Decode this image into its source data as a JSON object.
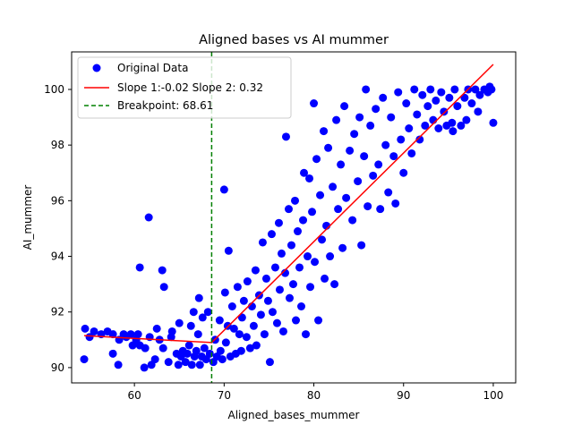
{
  "chart_data": {
    "type": "scatter",
    "title": "Aligned bases vs AI mummer",
    "xlabel": "Aligned_bases_mummer",
    "ylabel": "AI_mummer",
    "xlim": [
      53,
      102.5
    ],
    "ylim": [
      89.45,
      101.35
    ],
    "xticks": [
      60,
      70,
      80,
      90,
      100
    ],
    "yticks": [
      90,
      92,
      94,
      96,
      98,
      100
    ],
    "grid": false,
    "legend_position": "top-left",
    "colors": {
      "points": "#0000ff",
      "fit": "#ff0000",
      "breakpoint": "#008000"
    },
    "series": [
      {
        "name": "Original Data",
        "kind": "scatter",
        "points": [
          [
            54.4,
            90.3
          ],
          [
            54.5,
            91.4
          ],
          [
            55.0,
            91.1
          ],
          [
            55.5,
            91.3
          ],
          [
            56.3,
            91.2
          ],
          [
            57.0,
            91.3
          ],
          [
            57.6,
            91.2
          ],
          [
            57.6,
            90.5
          ],
          [
            58.2,
            90.1
          ],
          [
            58.3,
            91.0
          ],
          [
            58.8,
            91.2
          ],
          [
            59.1,
            91.1
          ],
          [
            59.6,
            91.2
          ],
          [
            59.8,
            90.8
          ],
          [
            60.2,
            91.0
          ],
          [
            60.4,
            91.2
          ],
          [
            60.6,
            93.6
          ],
          [
            60.6,
            90.8
          ],
          [
            61.1,
            90.0
          ],
          [
            61.2,
            90.7
          ],
          [
            61.6,
            95.4
          ],
          [
            61.7,
            91.1
          ],
          [
            61.9,
            90.1
          ],
          [
            62.3,
            90.3
          ],
          [
            62.5,
            91.4
          ],
          [
            62.8,
            91.0
          ],
          [
            63.1,
            93.5
          ],
          [
            63.2,
            90.7
          ],
          [
            63.3,
            92.9
          ],
          [
            63.8,
            90.2
          ],
          [
            64.1,
            91.1
          ],
          [
            64.2,
            91.3
          ],
          [
            64.7,
            90.5
          ],
          [
            64.9,
            90.1
          ],
          [
            65.0,
            91.6
          ],
          [
            65.2,
            90.4
          ],
          [
            65.4,
            90.6
          ],
          [
            65.7,
            90.2
          ],
          [
            65.9,
            90.5
          ],
          [
            66.1,
            90.8
          ],
          [
            66.3,
            91.5
          ],
          [
            66.4,
            90.1
          ],
          [
            66.6,
            92.0
          ],
          [
            66.7,
            90.4
          ],
          [
            66.9,
            90.6
          ],
          [
            67.1,
            91.2
          ],
          [
            67.2,
            92.5
          ],
          [
            67.3,
            90.1
          ],
          [
            67.5,
            90.4
          ],
          [
            67.6,
            91.8
          ],
          [
            67.8,
            90.7
          ],
          [
            68.0,
            90.3
          ],
          [
            68.2,
            92.0
          ],
          [
            68.4,
            90.5
          ],
          [
            68.8,
            90.2
          ],
          [
            69.0,
            91.0
          ],
          [
            69.2,
            90.4
          ],
          [
            69.5,
            91.7
          ],
          [
            69.6,
            90.6
          ],
          [
            69.8,
            90.3
          ],
          [
            70.0,
            96.4
          ],
          [
            70.1,
            92.7
          ],
          [
            70.2,
            90.9
          ],
          [
            70.4,
            91.5
          ],
          [
            70.5,
            94.2
          ],
          [
            70.7,
            90.4
          ],
          [
            70.9,
            92.2
          ],
          [
            71.1,
            91.4
          ],
          [
            71.3,
            90.5
          ],
          [
            71.5,
            92.9
          ],
          [
            71.7,
            91.2
          ],
          [
            71.9,
            90.6
          ],
          [
            72.0,
            91.8
          ],
          [
            72.2,
            92.4
          ],
          [
            72.5,
            91.1
          ],
          [
            72.6,
            93.1
          ],
          [
            72.9,
            90.7
          ],
          [
            73.1,
            92.2
          ],
          [
            73.3,
            91.5
          ],
          [
            73.5,
            93.5
          ],
          [
            73.6,
            90.8
          ],
          [
            73.9,
            92.6
          ],
          [
            74.1,
            91.9
          ],
          [
            74.3,
            94.5
          ],
          [
            74.5,
            91.2
          ],
          [
            74.7,
            93.2
          ],
          [
            74.9,
            92.4
          ],
          [
            75.1,
            90.2
          ],
          [
            75.3,
            94.8
          ],
          [
            75.4,
            92.0
          ],
          [
            75.7,
            93.6
          ],
          [
            75.9,
            91.6
          ],
          [
            76.1,
            95.2
          ],
          [
            76.2,
            92.8
          ],
          [
            76.4,
            94.1
          ],
          [
            76.6,
            91.3
          ],
          [
            76.8,
            93.4
          ],
          [
            76.9,
            98.3
          ],
          [
            77.2,
            95.7
          ],
          [
            77.3,
            92.5
          ],
          [
            77.5,
            94.4
          ],
          [
            77.7,
            93.0
          ],
          [
            77.9,
            96.0
          ],
          [
            78.0,
            91.7
          ],
          [
            78.2,
            94.9
          ],
          [
            78.4,
            93.6
          ],
          [
            78.6,
            92.2
          ],
          [
            78.8,
            95.3
          ],
          [
            78.9,
            97.0
          ],
          [
            79.1,
            91.2
          ],
          [
            79.3,
            94.0
          ],
          [
            79.5,
            96.8
          ],
          [
            79.6,
            92.9
          ],
          [
            79.8,
            95.6
          ],
          [
            80.0,
            99.5
          ],
          [
            80.1,
            93.8
          ],
          [
            80.3,
            97.5
          ],
          [
            80.5,
            91.7
          ],
          [
            80.7,
            96.2
          ],
          [
            80.9,
            94.6
          ],
          [
            81.1,
            98.5
          ],
          [
            81.2,
            93.2
          ],
          [
            81.4,
            95.1
          ],
          [
            81.6,
            97.9
          ],
          [
            81.8,
            94.0
          ],
          [
            82.1,
            96.5
          ],
          [
            82.3,
            93.0
          ],
          [
            82.5,
            98.9
          ],
          [
            82.7,
            95.7
          ],
          [
            83.0,
            97.3
          ],
          [
            83.2,
            94.3
          ],
          [
            83.4,
            99.4
          ],
          [
            83.6,
            96.1
          ],
          [
            84.0,
            97.8
          ],
          [
            84.3,
            95.3
          ],
          [
            84.5,
            98.4
          ],
          [
            84.9,
            96.7
          ],
          [
            85.1,
            99.0
          ],
          [
            85.3,
            94.4
          ],
          [
            85.6,
            97.6
          ],
          [
            85.8,
            100.0
          ],
          [
            86.0,
            95.8
          ],
          [
            86.3,
            98.7
          ],
          [
            86.6,
            96.9
          ],
          [
            86.9,
            99.3
          ],
          [
            87.2,
            97.3
          ],
          [
            87.4,
            95.7
          ],
          [
            87.7,
            99.7
          ],
          [
            88.0,
            98.0
          ],
          [
            88.3,
            96.3
          ],
          [
            88.6,
            99.0
          ],
          [
            88.9,
            97.6
          ],
          [
            89.1,
            95.9
          ],
          [
            89.4,
            99.9
          ],
          [
            89.7,
            98.2
          ],
          [
            90.0,
            97.0
          ],
          [
            90.3,
            99.5
          ],
          [
            90.6,
            98.6
          ],
          [
            90.9,
            97.7
          ],
          [
            91.2,
            100.0
          ],
          [
            91.5,
            99.1
          ],
          [
            91.8,
            98.2
          ],
          [
            92.1,
            99.8
          ],
          [
            92.4,
            98.7
          ],
          [
            92.7,
            99.4
          ],
          [
            93.0,
            100.0
          ],
          [
            93.3,
            98.9
          ],
          [
            93.6,
            99.6
          ],
          [
            93.9,
            98.6
          ],
          [
            94.2,
            99.9
          ],
          [
            94.5,
            99.2
          ],
          [
            94.8,
            98.7
          ],
          [
            95.1,
            99.7
          ],
          [
            95.4,
            98.8
          ],
          [
            95.7,
            100.0
          ],
          [
            96.0,
            99.4
          ],
          [
            96.4,
            98.7
          ],
          [
            96.8,
            99.7
          ],
          [
            97.2,
            100.0
          ],
          [
            97.6,
            99.5
          ],
          [
            98.0,
            100.0
          ],
          [
            98.5,
            99.8
          ],
          [
            99.0,
            100.0
          ],
          [
            99.4,
            99.9
          ],
          [
            99.8,
            100.0
          ],
          [
            100.0,
            98.8
          ],
          [
            99.6,
            100.1
          ],
          [
            98.3,
            99.2
          ],
          [
            97.0,
            98.9
          ],
          [
            95.5,
            98.5
          ]
        ]
      },
      {
        "name": "Slope 1:-0.02 Slope 2: 0.32",
        "kind": "line",
        "points": [
          [
            54.4,
            91.15
          ],
          [
            68.61,
            90.9
          ],
          [
            100.0,
            100.9
          ]
        ]
      },
      {
        "name": "Breakpoint: 68.61",
        "kind": "vline",
        "x": 68.61
      }
    ]
  }
}
